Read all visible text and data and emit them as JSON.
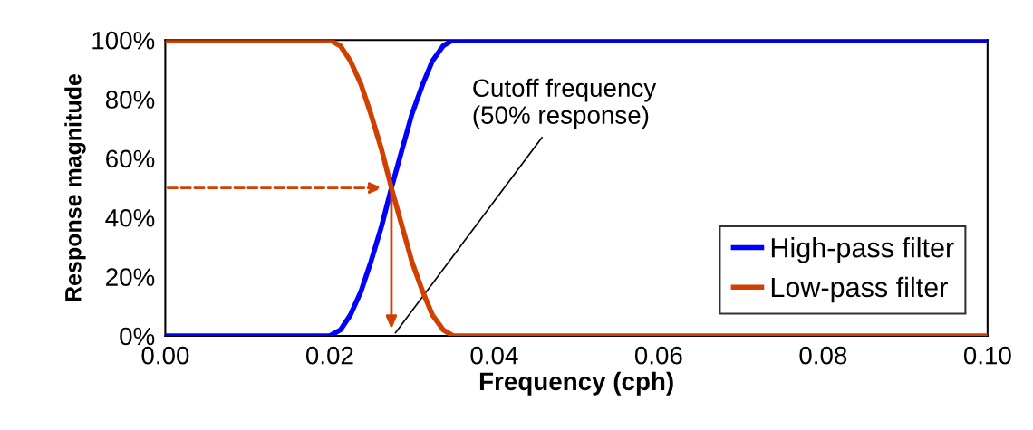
{
  "chart_data": {
    "type": "line",
    "xlabel": "Frequency (cph)",
    "ylabel": "Response magnitude",
    "xlim": [
      0,
      0.1
    ],
    "ylim": [
      0,
      100
    ],
    "xticks": [
      {
        "value": 0,
        "label": "0.00"
      },
      {
        "value": 0.02,
        "label": "0.02"
      },
      {
        "value": 0.04,
        "label": "0.04"
      },
      {
        "value": 0.06,
        "label": "0.06"
      },
      {
        "value": 0.08,
        "label": "0.08"
      },
      {
        "value": 0.1,
        "label": "0.10"
      }
    ],
    "yticks": [
      {
        "value": 0,
        "label": "0%"
      },
      {
        "value": 20,
        "label": "20%"
      },
      {
        "value": 40,
        "label": "40%"
      },
      {
        "value": 60,
        "label": "60%"
      },
      {
        "value": 80,
        "label": "80%"
      },
      {
        "value": 100,
        "label": "100%"
      }
    ],
    "x": [
      0,
      0.02,
      0.0213,
      0.0225,
      0.0238,
      0.025,
      0.0263,
      0.0275,
      0.0288,
      0.03,
      0.0313,
      0.0325,
      0.0338,
      0.035,
      0.1
    ],
    "series": [
      {
        "name": "High-pass filter",
        "color": "#0000ff",
        "values": [
          0,
          0,
          2,
          7,
          15,
          25,
          37,
          50,
          63,
          75,
          85,
          93,
          98,
          100,
          100
        ]
      },
      {
        "name": "Low-pass filter",
        "color": "#d04000",
        "values": [
          100,
          100,
          98,
          93,
          85,
          75,
          63,
          50,
          37,
          25,
          15,
          7,
          2,
          0,
          0
        ]
      }
    ],
    "annotations": [
      "Cutoff frequency\n(50% response)"
    ],
    "legend": "bottom right",
    "grid": false,
    "marker": "none",
    "line_style": "solid"
  }
}
